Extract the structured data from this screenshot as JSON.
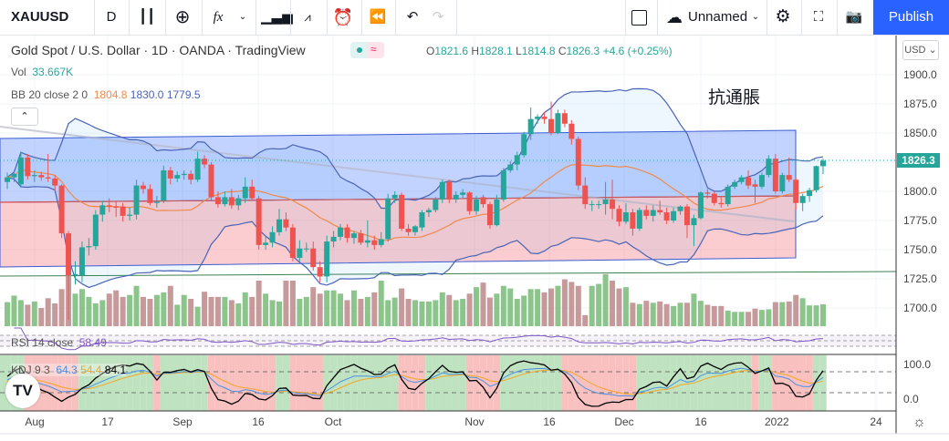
{
  "toolbar": {
    "symbol": "XAUUSD",
    "interval": "D",
    "layout_name": "Unnamed",
    "publish_label": "Publish",
    "icons": [
      "candles-icon",
      "plus-circle-icon",
      "fx-icon",
      "chevron-down-icon",
      "bar-chart-icon",
      "templates-icon",
      "alert-icon",
      "replay-icon",
      "undo-icon",
      "redo-icon",
      "square-icon",
      "cloud-icon",
      "gear-icon",
      "fullscreen-icon",
      "camera-icon"
    ]
  },
  "legend": {
    "title": "Gold Spot / U.S. Dollar · 1D · OANDA · TradingView",
    "ohlc": {
      "o_label": "O",
      "o": "1821.6",
      "h_label": "H",
      "h": "1828.1",
      "l_label": "L",
      "l": "1814.8",
      "c_label": "C",
      "c": "1826.3",
      "change": "+4.6 (+0.25%)"
    },
    "vol_label": "Vol",
    "vol_value": "33.667K",
    "bb_label": "BB 20 close 2 0",
    "bb_basis": "1804.8",
    "bb_upper": "1830.0",
    "bb_lower": "1779.5",
    "rsi_label": "RSI 14 close",
    "rsi_value": "58.49",
    "kdj_label": "KDJ 9 3",
    "kdj_k": "64.3",
    "kdj_d": "54.4",
    "kdj_j": "84.1"
  },
  "annotation": "抗通脹",
  "price_axis": {
    "currency": "USD",
    "ticks": [
      "1900.0",
      "1875.0",
      "1850.0",
      "1825.0",
      "1800.0",
      "1775.0",
      "1750.0",
      "1725.0",
      "1700.0"
    ],
    "last_price": "1826.3",
    "kdj_ticks": [
      "100.0",
      "0.0"
    ]
  },
  "time_axis": {
    "ticks": [
      "Aug",
      "17",
      "Sep",
      "16",
      "Oct",
      "Nov",
      "16",
      "Dec",
      "16",
      "2022",
      "24"
    ]
  },
  "colors": {
    "up": "#26a69a",
    "down": "#ef5350",
    "accent": "#2962ff",
    "bb_basis": "#f08a4b",
    "bb_band": "#4a63b5",
    "vol_up": "#7fbf7f",
    "vol_down": "#c08f8f",
    "kdj_k": "#4a90e2",
    "kdj_d": "#f5a623",
    "kdj_j": "#000000",
    "rsi": "#7e57c2"
  },
  "chart_data": {
    "type": "candlestick",
    "ylim": [
      1690,
      1910
    ],
    "ohlc": [
      [
        1808,
        1816,
        1802,
        1812
      ],
      [
        1812,
        1818,
        1808,
        1815
      ],
      [
        1806,
        1834,
        1804,
        1829
      ],
      [
        1829,
        1832,
        1810,
        1813
      ],
      [
        1813,
        1818,
        1808,
        1814
      ],
      [
        1814,
        1817,
        1809,
        1812
      ],
      [
        1812,
        1832,
        1808,
        1811
      ],
      [
        1811,
        1814,
        1800,
        1805
      ],
      [
        1805,
        1806,
        1760,
        1764
      ],
      [
        1764,
        1766,
        1690,
        1728
      ],
      [
        1728,
        1740,
        1720,
        1729
      ],
      [
        1728,
        1757,
        1722,
        1752
      ],
      [
        1752,
        1760,
        1745,
        1753
      ],
      [
        1753,
        1784,
        1750,
        1780
      ],
      [
        1780,
        1792,
        1774,
        1788
      ],
      [
        1788,
        1794,
        1782,
        1787
      ],
      [
        1787,
        1792,
        1778,
        1786
      ],
      [
        1787,
        1790,
        1774,
        1779
      ],
      [
        1779,
        1786,
        1775,
        1780
      ],
      [
        1780,
        1810,
        1776,
        1805
      ],
      [
        1805,
        1808,
        1798,
        1802
      ],
      [
        1802,
        1806,
        1788,
        1790
      ],
      [
        1790,
        1796,
        1786,
        1791
      ],
      [
        1792,
        1822,
        1790,
        1818
      ],
      [
        1818,
        1821,
        1806,
        1811
      ],
      [
        1811,
        1817,
        1808,
        1814
      ],
      [
        1814,
        1818,
        1810,
        1815
      ],
      [
        1815,
        1818,
        1806,
        1810
      ],
      [
        1810,
        1834,
        1808,
        1828
      ],
      [
        1828,
        1831,
        1820,
        1823
      ],
      [
        1823,
        1825,
        1792,
        1795
      ],
      [
        1795,
        1800,
        1786,
        1789
      ],
      [
        1789,
        1800,
        1787,
        1795
      ],
      [
        1795,
        1802,
        1785,
        1788
      ],
      [
        1788,
        1797,
        1784,
        1794
      ],
      [
        1794,
        1812,
        1790,
        1804
      ],
      [
        1804,
        1810,
        1792,
        1794
      ],
      [
        1794,
        1796,
        1750,
        1754
      ],
      [
        1754,
        1762,
        1750,
        1756
      ],
      [
        1756,
        1770,
        1752,
        1765
      ],
      [
        1765,
        1785,
        1762,
        1776
      ],
      [
        1776,
        1782,
        1766,
        1769
      ],
      [
        1769,
        1772,
        1740,
        1743
      ],
      [
        1743,
        1758,
        1740,
        1751
      ],
      [
        1751,
        1756,
        1748,
        1751
      ],
      [
        1751,
        1757,
        1732,
        1735
      ],
      [
        1735,
        1740,
        1722,
        1727
      ],
      [
        1727,
        1762,
        1722,
        1757
      ],
      [
        1757,
        1766,
        1752,
        1761
      ],
      [
        1761,
        1772,
        1758,
        1769
      ],
      [
        1769,
        1772,
        1756,
        1760
      ],
      [
        1760,
        1766,
        1755,
        1764
      ],
      [
        1764,
        1767,
        1754,
        1756
      ],
      [
        1756,
        1775,
        1752,
        1758
      ],
      [
        1758,
        1762,
        1750,
        1754
      ],
      [
        1754,
        1765,
        1752,
        1759
      ],
      [
        1759,
        1798,
        1757,
        1794
      ],
      [
        1794,
        1800,
        1790,
        1797
      ],
      [
        1797,
        1799,
        1766,
        1768
      ],
      [
        1768,
        1772,
        1762,
        1765
      ],
      [
        1765,
        1771,
        1762,
        1770
      ],
      [
        1769,
        1784,
        1766,
        1782
      ],
      [
        1782,
        1786,
        1778,
        1784
      ],
      [
        1784,
        1795,
        1782,
        1793
      ],
      [
        1793,
        1810,
        1790,
        1808
      ],
      [
        1808,
        1810,
        1790,
        1793
      ],
      [
        1793,
        1800,
        1790,
        1797
      ],
      [
        1797,
        1802,
        1794,
        1799
      ],
      [
        1799,
        1800,
        1780,
        1783
      ],
      [
        1783,
        1796,
        1780,
        1793
      ],
      [
        1795,
        1797,
        1786,
        1789
      ],
      [
        1789,
        1791,
        1768,
        1771
      ],
      [
        1771,
        1797,
        1770,
        1793
      ],
      [
        1793,
        1820,
        1791,
        1818
      ],
      [
        1818,
        1826,
        1816,
        1823
      ],
      [
        1823,
        1834,
        1818,
        1831
      ],
      [
        1831,
        1851,
        1829,
        1849
      ],
      [
        1849,
        1872,
        1844,
        1862
      ],
      [
        1862,
        1866,
        1858,
        1864
      ],
      [
        1864,
        1868,
        1858,
        1862
      ],
      [
        1862,
        1877,
        1848,
        1850
      ],
      [
        1850,
        1870,
        1849,
        1867
      ],
      [
        1867,
        1870,
        1855,
        1858
      ],
      [
        1858,
        1861,
        1840,
        1845
      ],
      [
        1845,
        1847,
        1801,
        1805
      ],
      [
        1805,
        1812,
        1785,
        1789
      ],
      [
        1789,
        1792,
        1783,
        1789
      ],
      [
        1789,
        1792,
        1785,
        1789
      ],
      [
        1789,
        1808,
        1780,
        1793
      ],
      [
        1793,
        1810,
        1776,
        1785
      ],
      [
        1785,
        1788,
        1770,
        1774
      ],
      [
        1774,
        1790,
        1772,
        1782
      ],
      [
        1782,
        1785,
        1762,
        1768
      ],
      [
        1768,
        1786,
        1766,
        1784
      ],
      [
        1784,
        1788,
        1776,
        1779
      ],
      [
        1779,
        1788,
        1774,
        1784
      ],
      [
        1784,
        1792,
        1780,
        1782
      ],
      [
        1782,
        1786,
        1772,
        1775
      ],
      [
        1775,
        1786,
        1773,
        1783
      ],
      [
        1783,
        1788,
        1780,
        1787
      ],
      [
        1787,
        1789,
        1760,
        1771
      ],
      [
        1771,
        1780,
        1753,
        1777
      ],
      [
        1777,
        1800,
        1776,
        1799
      ],
      [
        1799,
        1802,
        1794,
        1798
      ],
      [
        1798,
        1800,
        1788,
        1790
      ],
      [
        1790,
        1795,
        1786,
        1789
      ],
      [
        1789,
        1806,
        1787,
        1804
      ],
      [
        1804,
        1810,
        1802,
        1808
      ],
      [
        1808,
        1814,
        1806,
        1812
      ],
      [
        1812,
        1818,
        1802,
        1805
      ],
      [
        1806,
        1810,
        1790,
        1804
      ],
      [
        1804,
        1816,
        1802,
        1814
      ],
      [
        1814,
        1831,
        1812,
        1828
      ],
      [
        1828,
        1832,
        1798,
        1800
      ],
      [
        1800,
        1816,
        1798,
        1814
      ],
      [
        1814,
        1829,
        1808,
        1810
      ],
      [
        1810,
        1812,
        1784,
        1790
      ],
      [
        1790,
        1798,
        1783,
        1796
      ],
      [
        1796,
        1803,
        1791,
        1801
      ],
      [
        1801,
        1822,
        1799,
        1821.6
      ],
      [
        1821.6,
        1828.1,
        1814.8,
        1826.3
      ]
    ],
    "volume_k": [
      37,
      47,
      40,
      33,
      38,
      28,
      43,
      35,
      57,
      85,
      50,
      57,
      45,
      35,
      40,
      50,
      55,
      45,
      48,
      62,
      45,
      42,
      48,
      52,
      62,
      33,
      48,
      42,
      30,
      53,
      45,
      45,
      45,
      40,
      35,
      52,
      45,
      70,
      50,
      40,
      38,
      70,
      70,
      42,
      45,
      60,
      50,
      55,
      55,
      50,
      40,
      55,
      42,
      45,
      52,
      70,
      40,
      44,
      58,
      42,
      40,
      38,
      38,
      40,
      52,
      48,
      40,
      42,
      50,
      60,
      67,
      44,
      50,
      62,
      58,
      42,
      47,
      57,
      57,
      52,
      58,
      62,
      72,
      68,
      62,
      17,
      62,
      65,
      80,
      70,
      58,
      60,
      36,
      34,
      39,
      36,
      38,
      34,
      31,
      36,
      36,
      50,
      39,
      33,
      31,
      31,
      24,
      22,
      22,
      22,
      27,
      25,
      26,
      37,
      37,
      38,
      48,
      43,
      32,
      32,
      33.667
    ],
    "bollinger": {
      "length": 20,
      "mult": 2
    },
    "rsi_length": 14,
    "kdj": {
      "length": 9,
      "signal": 3
    }
  }
}
